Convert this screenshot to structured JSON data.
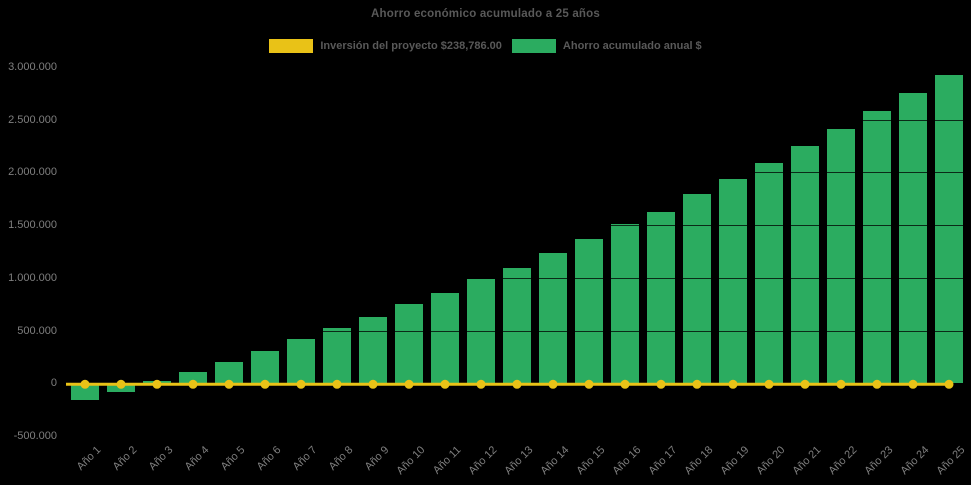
{
  "title": "Ahorro económico acumulado a 25 años",
  "colors": {
    "background": "#000000",
    "bar_green": "#2bac60",
    "line_yellow": "#e9c217",
    "title_text": "#595959",
    "axis_text": "#7f7f7f"
  },
  "legend": [
    {
      "label": "Inversión del proyecto $238,786.00",
      "color": "#e9c217"
    },
    {
      "label": "Ahorro acumulado anual $",
      "color": "#2bac60"
    }
  ],
  "chart_data": {
    "type": "bar",
    "title": "Ahorro económico acumulado a 25 años",
    "categories": [
      "Año 1",
      "Año 2",
      "Año 3",
      "Año 4",
      "Año 5",
      "Año 6",
      "Año 7",
      "Año 8",
      "Año 9",
      "Año 10",
      "Año 11",
      "Año 12",
      "Año 13",
      "Año 14",
      "Año 15",
      "Año 16",
      "Año 17",
      "Año 18",
      "Año 19",
      "Año 20",
      "Año 21",
      "Año 22",
      "Año 23",
      "Año 24",
      "Año 25"
    ],
    "series": [
      {
        "name": "Ahorro acumulado anual $",
        "type": "bar",
        "color": "#2bac60",
        "values": [
          -160000,
          -80000,
          20000,
          105000,
          200000,
          305000,
          420000,
          520000,
          630000,
          750000,
          855000,
          990000,
          1090000,
          1235000,
          1370000,
          1510000,
          1625000,
          1795000,
          1935000,
          2090000,
          2250000,
          2410000,
          2580000,
          2755000,
          2925000
        ]
      },
      {
        "name": "Inversión del proyecto $238,786.00",
        "type": "line",
        "color": "#e9c217",
        "plotted_level": 0,
        "display_value": "$238,786.00"
      }
    ],
    "ylim": [
      -500000,
      3000000
    ],
    "ytick_step": 500000,
    "ytick_labels": [
      "3.000.000",
      "2.500.000",
      "2.000.000",
      "1.500.000",
      "1.000.000",
      "500.000",
      "0",
      "-500.000"
    ],
    "grid": "subtle dark gridlines visible over bars",
    "legend_position": "top"
  }
}
